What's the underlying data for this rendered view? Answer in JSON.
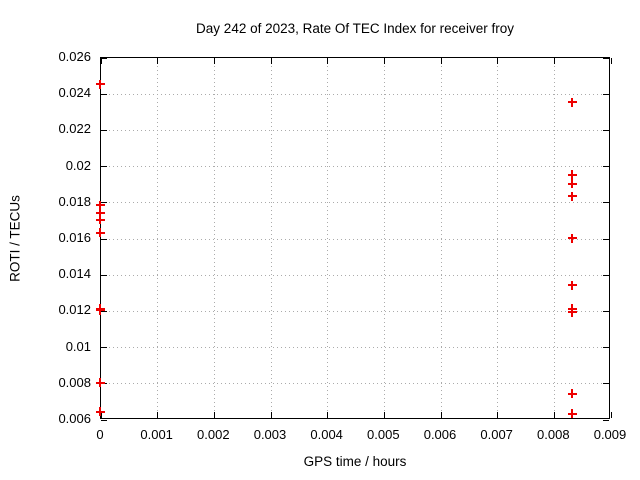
{
  "chart_data": {
    "type": "scatter",
    "title": "Day 242 of 2023, Rate Of TEC Index for receiver froy",
    "xlabel": "GPS time / hours",
    "ylabel": "ROTI / TECUs",
    "xlim": [
      0,
      0.009
    ],
    "ylim": [
      0.006,
      0.026
    ],
    "xticks": [
      0,
      0.001,
      0.002,
      0.003,
      0.004,
      0.005,
      0.006,
      0.007,
      0.008,
      0.009
    ],
    "xtick_labels": [
      "0",
      "0.001",
      "0.002",
      "0.003",
      "0.004",
      "0.005",
      "0.006",
      "0.007",
      "0.008",
      "0.009"
    ],
    "yticks": [
      0.006,
      0.008,
      0.01,
      0.012,
      0.014,
      0.016,
      0.018,
      0.02,
      0.022,
      0.024,
      0.026
    ],
    "ytick_labels": [
      "0.006",
      "0.008",
      "0.01",
      "0.012",
      "0.014",
      "0.016",
      "0.018",
      "0.02",
      "0.022",
      "0.024",
      "0.026"
    ],
    "grid": true,
    "legend": "none",
    "marker": "plus",
    "colors": {
      "marker": "#ee0000",
      "grid": "#ababab",
      "axis": "#000000",
      "background": "#ffffff"
    },
    "series": [
      {
        "name": "ROTI",
        "points": [
          [
            0,
            0.0245
          ],
          [
            0,
            0.0178
          ],
          [
            0,
            0.0174
          ],
          [
            0,
            0.017
          ],
          [
            0,
            0.0163
          ],
          [
            0,
            0.0121
          ],
          [
            0,
            0.012
          ],
          [
            0,
            0.008
          ],
          [
            0,
            0.0064
          ],
          [
            0.00833,
            0.0235
          ],
          [
            0.00833,
            0.0195
          ],
          [
            0.00833,
            0.019
          ],
          [
            0.00833,
            0.0183
          ],
          [
            0.00833,
            0.016
          ],
          [
            0.00833,
            0.0134
          ],
          [
            0.00833,
            0.0121
          ],
          [
            0.00833,
            0.0119
          ],
          [
            0.00833,
            0.0074
          ],
          [
            0.00833,
            0.0063
          ]
        ]
      }
    ]
  }
}
